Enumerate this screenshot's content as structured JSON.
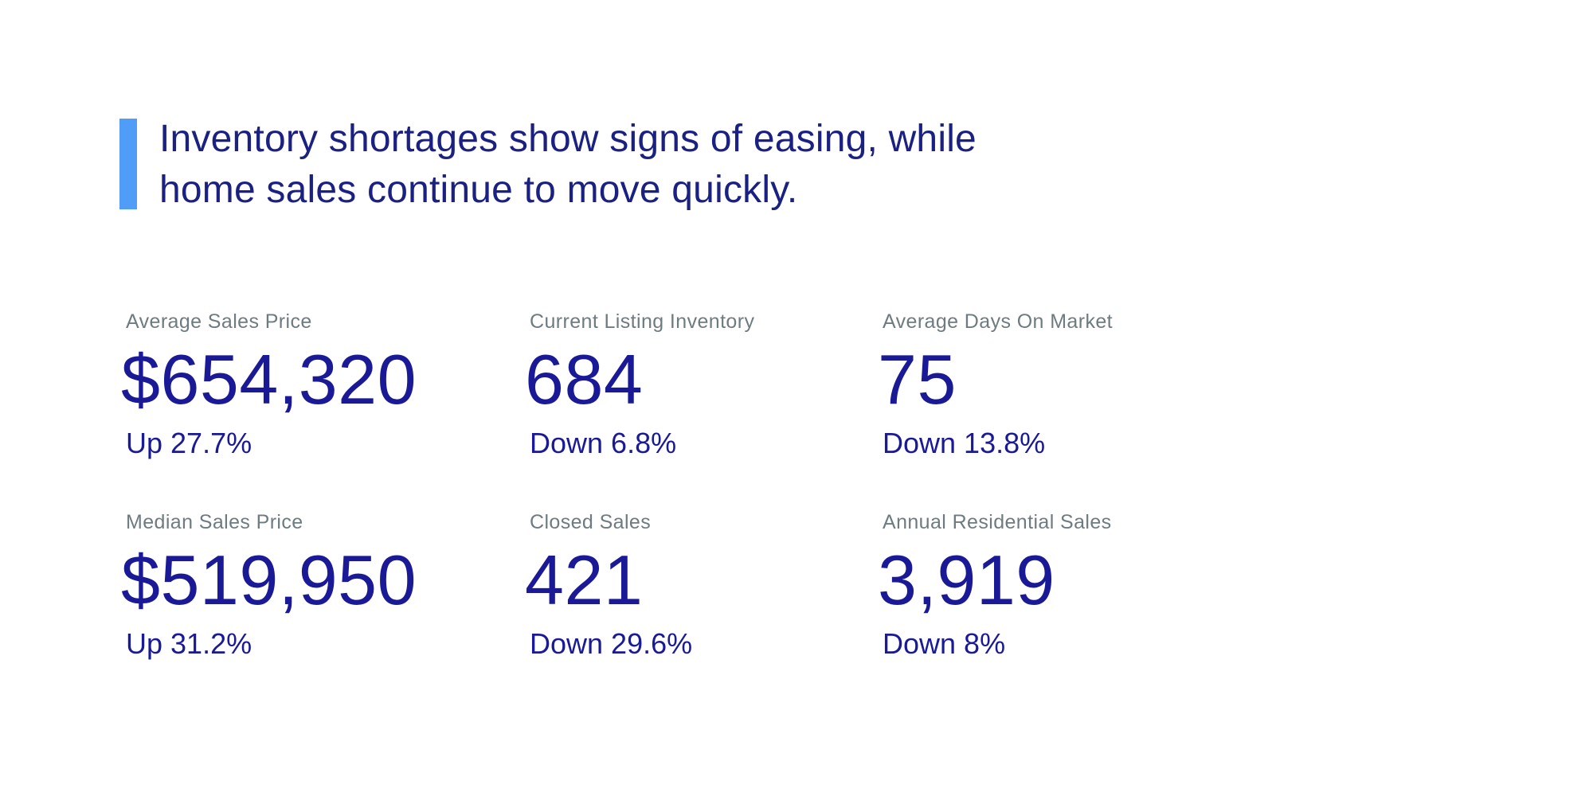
{
  "colors": {
    "accent": "#4f9df6",
    "headline_navy": "#1a2183",
    "stat_navy": "#1a1a96",
    "label_gray": "#6e7b80",
    "background": "#ffffff"
  },
  "headline": {
    "line1": "Inventory shortages show signs of easing, while",
    "line2": "home sales continue to move quickly."
  },
  "stats": {
    "cards": [
      {
        "label": "Average Sales Price",
        "value": "$654,320",
        "change": "Up 27.7%"
      },
      {
        "label": "Current Listing Inventory",
        "value": "684",
        "change": "Down 6.8%"
      },
      {
        "label": "Average Days On Market",
        "value": "75",
        "change": "Down 13.8%"
      },
      {
        "label": "Median Sales Price",
        "value": "$519,950",
        "change": "Up 31.2%"
      },
      {
        "label": "Closed Sales",
        "value": "421",
        "change": "Down 29.6%"
      },
      {
        "label": "Annual Residential Sales",
        "value": "3,919",
        "change": "Down 8%"
      }
    ]
  }
}
